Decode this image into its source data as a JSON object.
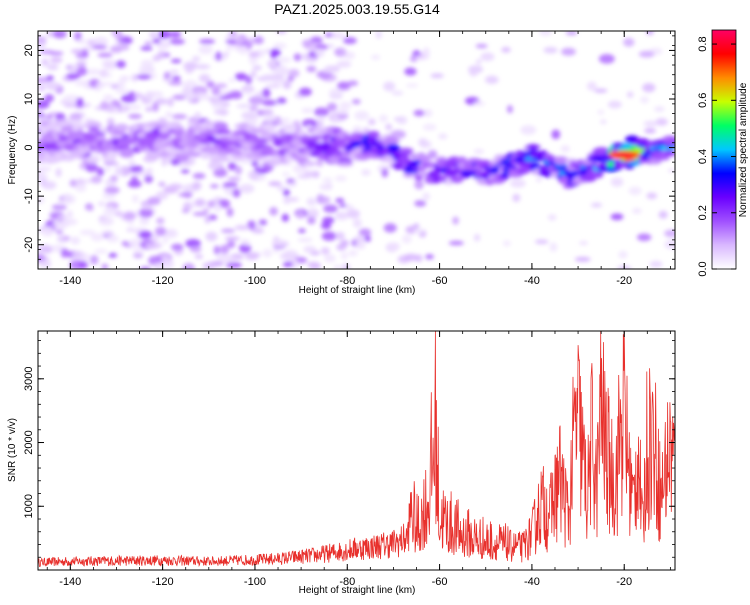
{
  "title": "PAZ1.2025.003.19.55.G14",
  "colors": {
    "snr_line": "#e8302c",
    "colormap": [
      "#ffffff",
      "#d9b8ff",
      "#a050ff",
      "#6a00ff",
      "#0000ff",
      "#00c8ff",
      "#00ff64",
      "#c8ff00",
      "#ff8c00",
      "#ff0000",
      "#ff0064"
    ]
  },
  "chart_data": [
    {
      "type": "heatmap",
      "xlabel": "Height of straight line (km)",
      "ylabel": "Frequency (Hz)",
      "xlim": [
        -147,
        -9
      ],
      "ylim": [
        -25,
        24
      ],
      "x_ticks": [
        "-140",
        "-120",
        "-100",
        "-80",
        "-60",
        "-40",
        "-20"
      ],
      "y_ticks": [
        "20",
        "10",
        "0",
        "-10",
        "-20"
      ],
      "colorbar": {
        "label": "Normalized spectral amplitude",
        "range": [
          0.0,
          0.85
        ],
        "ticks": [
          "0.0",
          "0.2",
          "0.4",
          "0.6",
          "0.8"
        ]
      },
      "ridge": {
        "x": [
          -145,
          -138,
          -130,
          -120,
          -110,
          -100,
          -90,
          -80,
          -75,
          -70,
          -65,
          -60,
          -55,
          -50,
          -45,
          -40,
          -35,
          -30,
          -25,
          -20,
          -15,
          -10
        ],
        "frequency": [
          1,
          2,
          1,
          2,
          2,
          1,
          0,
          0,
          1,
          -1,
          -4,
          -5,
          -4,
          -5,
          -4,
          -2,
          -4,
          -6,
          -3,
          -1,
          -1,
          0
        ],
        "amplitude": [
          0.2,
          0.2,
          0.2,
          0.2,
          0.2,
          0.2,
          0.2,
          0.3,
          0.35,
          0.3,
          0.35,
          0.35,
          0.3,
          0.35,
          0.35,
          0.4,
          0.4,
          0.4,
          0.45,
          0.8,
          0.5,
          0.4
        ]
      }
    },
    {
      "type": "line",
      "xlabel": "Height of straight line (km)",
      "ylabel": "SNR (10 * v/v)",
      "xlim": [
        -147,
        -9
      ],
      "ylim": [
        0,
        3750
      ],
      "x_ticks": [
        "-140",
        "-120",
        "-100",
        "-80",
        "-60",
        "-40",
        "-20"
      ],
      "y_ticks": [
        "1000",
        "2000",
        "3000"
      ],
      "series": [
        {
          "x": [
            -147,
            -140,
            -130,
            -120,
            -110,
            -100,
            -95,
            -90,
            -86,
            -82,
            -78,
            -74,
            -70,
            -67,
            -66,
            -65,
            -63,
            -62,
            -61,
            -60,
            -58,
            -55,
            -50,
            -45,
            -42,
            -40,
            -38,
            -36,
            -34,
            -32,
            -31,
            -30,
            -29,
            -28,
            -27,
            -26,
            -25,
            -24,
            -23,
            -22,
            -21,
            -20,
            -19,
            -18,
            -17,
            -16,
            -15,
            -14,
            -13,
            -12,
            -11,
            -10,
            -9
          ],
          "y": [
            150,
            170,
            180,
            190,
            170,
            200,
            220,
            260,
            300,
            360,
            420,
            460,
            520,
            620,
            1300,
            900,
            1400,
            1900,
            3300,
            1200,
            1000,
            800,
            650,
            550,
            520,
            800,
            1500,
            1300,
            2100,
            1200,
            2800,
            3450,
            2500,
            1600,
            3000,
            1800,
            3750,
            2700,
            2300,
            1900,
            3000,
            3600,
            2200,
            1500,
            2700,
            900,
            3000,
            3100,
            2500,
            1600,
            2300,
            2700,
            2400
          ]
        }
      ]
    }
  ]
}
